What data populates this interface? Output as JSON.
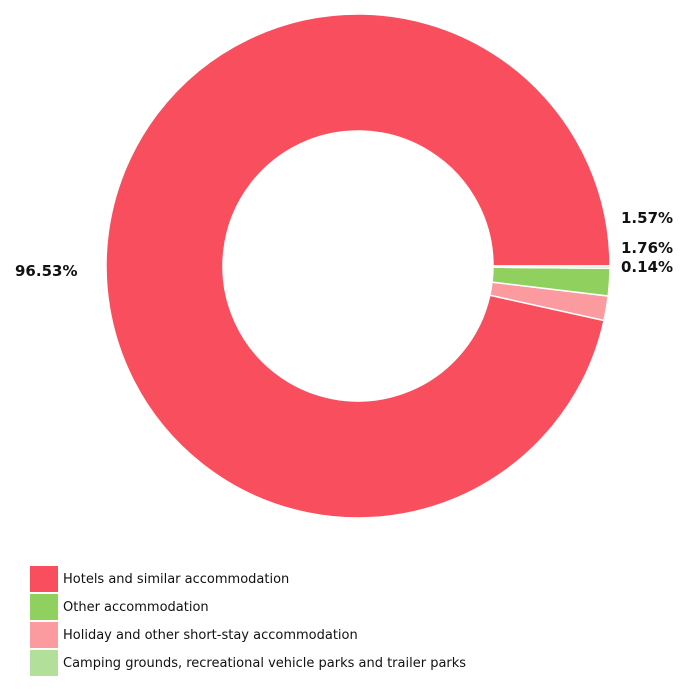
{
  "chart_data": {
    "type": "pie",
    "variant": "donut",
    "title": "",
    "categories": [
      "Hotels and similar accommodation",
      "Other accommodation",
      "Holiday and other short-stay accommodation",
      "Camping grounds, recreational vehicle parks and trailer parks"
    ],
    "values": [
      96.53,
      1.76,
      1.57,
      0.14
    ],
    "value_labels": [
      "96.53%",
      "1.76%",
      "1.57%",
      "0.14%"
    ],
    "colors": [
      "#f94e5d",
      "#8fd05e",
      "#fb9b9f",
      "#b2e09a"
    ],
    "legend_position": "bottom-left"
  }
}
